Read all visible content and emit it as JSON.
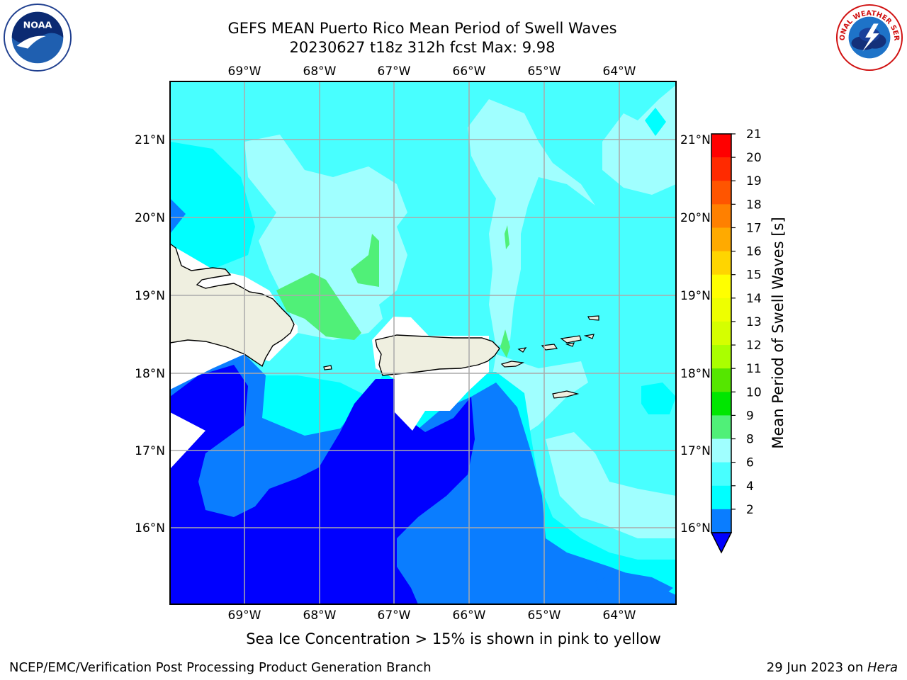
{
  "title": {
    "line1": "GEFS MEAN Puerto Rico Mean Period of Swell Waves",
    "line2": "20230627 t18z 312h fcst   Max: 9.98"
  },
  "map": {
    "lon_labels": [
      "69°W",
      "68°W",
      "67°W",
      "66°W",
      "65°W",
      "64°W"
    ],
    "lat_labels": [
      "21°N",
      "20°N",
      "19°N",
      "18°N",
      "17°N",
      "16°N"
    ],
    "fill_colors": {
      "2_4": "#0000ff",
      "4_6": "#0a7dff",
      "6_8": "#00ffff",
      "8_9": "#48ffff",
      "9_10": "#a0ffff",
      "10_11": "#50f078",
      "land": "#efefe0",
      "missing": "#ffffff"
    }
  },
  "colorbar": {
    "title": "Mean Period of Swell Waves [s]",
    "ticks": [
      "21",
      "20",
      "19",
      "18",
      "17",
      "16",
      "15",
      "14",
      "13",
      "12",
      "11",
      "10",
      "9",
      "8",
      "6",
      "4",
      "2"
    ],
    "colors": [
      "#ff0000",
      "#ff2a00",
      "#ff5500",
      "#ff8000",
      "#ffaa00",
      "#ffd500",
      "#ffff00",
      "#eeff00",
      "#d5ff00",
      "#aaff00",
      "#55e600",
      "#00e600",
      "#50f078",
      "#a0ffff",
      "#48ffff",
      "#00ffff",
      "#0a7dff",
      "#0000ff"
    ]
  },
  "ice_note": "Sea Ice Concentration > 15% is shown in pink to yellow",
  "footer": {
    "left": "NCEP/EMC/Verification Post Processing Product Generation Branch",
    "date": "29 Jun 2023 on ",
    "machine": "Hera"
  },
  "logos": {
    "noaa_text": "NOAA",
    "nws_text": "NATIONAL WEATHER SERVICE"
  }
}
